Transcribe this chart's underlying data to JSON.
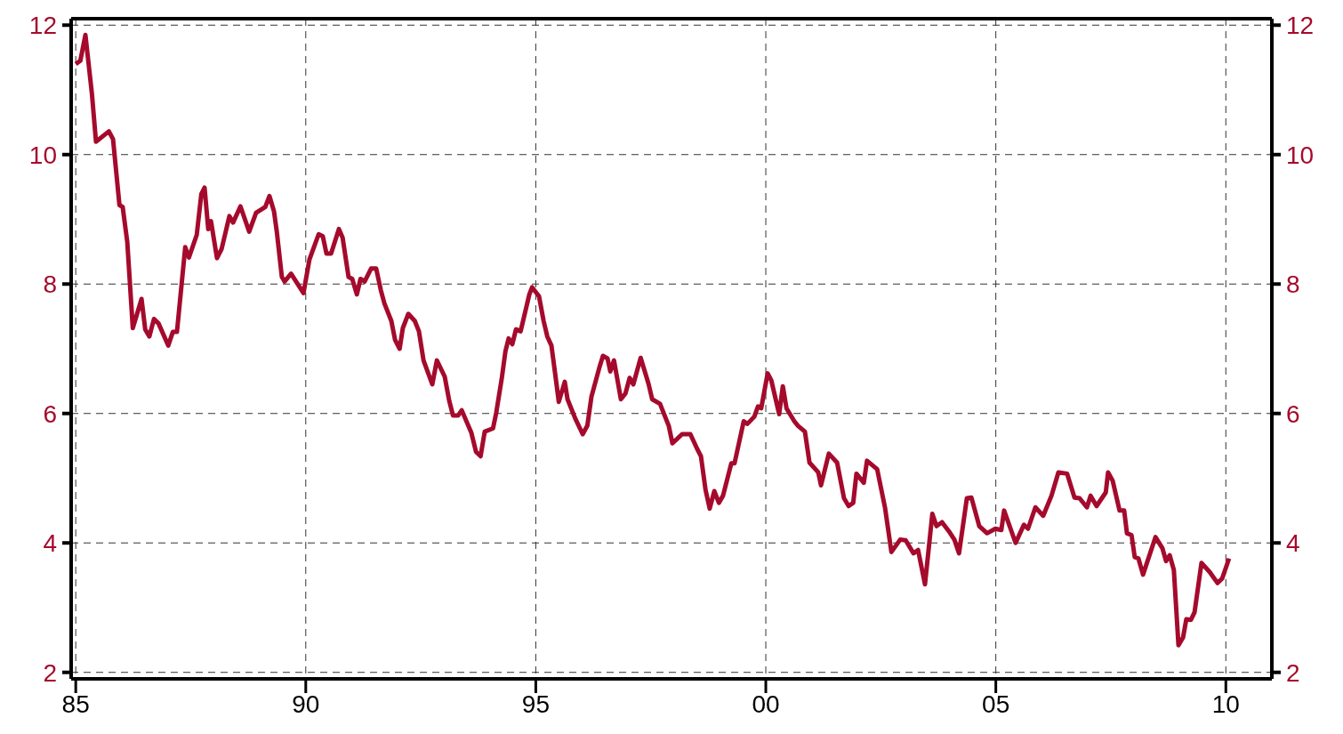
{
  "chart_data": {
    "type": "line",
    "xlim": [
      1984.9,
      2011.0
    ],
    "xticks": [
      {
        "value": 1985,
        "label": "85"
      },
      {
        "value": 1990,
        "label": "90"
      },
      {
        "value": 1995,
        "label": "95"
      },
      {
        "value": 2000,
        "label": "00"
      },
      {
        "value": 2005,
        "label": "05"
      },
      {
        "value": 2010,
        "label": "10"
      }
    ],
    "ylim": [
      1.9,
      12.1
    ],
    "yticks": [
      2,
      4,
      6,
      8,
      10,
      12
    ],
    "y2lim": [
      1.9,
      12.1
    ],
    "y2ticks": [
      2,
      4,
      6,
      8,
      10,
      12
    ],
    "grid": true,
    "legend": false,
    "line_style": "solid",
    "marker": "none",
    "series": [
      {
        "color": "#a50a2c",
        "x": [
          1985.0,
          1985.1,
          1985.21,
          1985.35,
          1985.44,
          1985.72,
          1985.81,
          1985.95,
          1986.02,
          1986.12,
          1986.24,
          1986.43,
          1986.51,
          1986.6,
          1986.7,
          1986.8,
          1987.01,
          1987.11,
          1987.2,
          1987.38,
          1987.46,
          1987.63,
          1987.73,
          1987.8,
          1987.88,
          1987.94,
          1988.07,
          1988.17,
          1988.34,
          1988.42,
          1988.58,
          1988.77,
          1988.92,
          1989.12,
          1989.21,
          1989.31,
          1989.37,
          1989.48,
          1989.54,
          1989.68,
          1989.95,
          1990.08,
          1990.28,
          1990.37,
          1990.45,
          1990.55,
          1990.72,
          1990.8,
          1990.93,
          1991.01,
          1991.11,
          1991.19,
          1991.28,
          1991.42,
          1991.53,
          1991.63,
          1991.71,
          1991.86,
          1991.94,
          1992.04,
          1992.11,
          1992.23,
          1992.37,
          1992.46,
          1992.56,
          1992.75,
          1992.85,
          1993.02,
          1993.12,
          1993.2,
          1993.31,
          1993.39,
          1993.6,
          1993.7,
          1993.8,
          1993.89,
          1994.07,
          1994.14,
          1994.26,
          1994.34,
          1994.41,
          1994.49,
          1994.57,
          1994.67,
          1994.86,
          1994.92,
          1995.07,
          1995.17,
          1995.25,
          1995.34,
          1995.42,
          1995.5,
          1995.63,
          1995.69,
          1995.86,
          1996.02,
          1996.12,
          1996.21,
          1996.39,
          1996.46,
          1996.56,
          1996.62,
          1996.7,
          1996.85,
          1996.95,
          1997.04,
          1997.12,
          1997.28,
          1997.45,
          1997.53,
          1997.7,
          1997.89,
          1997.97,
          1998.18,
          1998.36,
          1998.51,
          1998.59,
          1998.69,
          1998.78,
          1998.88,
          1998.98,
          1999.07,
          1999.25,
          1999.32,
          1999.52,
          1999.6,
          1999.75,
          1999.83,
          1999.9,
          2000.04,
          2000.12,
          2000.29,
          2000.37,
          2000.45,
          2000.62,
          2000.7,
          2000.85,
          2000.95,
          2001.14,
          2001.2,
          2001.37,
          2001.55,
          2001.7,
          2001.8,
          2001.9,
          2001.97,
          2002.13,
          2002.2,
          2002.42,
          2002.59,
          2002.73,
          2002.92,
          2003.04,
          2003.21,
          2003.31,
          2003.46,
          2003.62,
          2003.71,
          2003.83,
          2004.0,
          2004.1,
          2004.2,
          2004.37,
          2004.47,
          2004.64,
          2004.81,
          2004.99,
          2005.12,
          2005.18,
          2005.43,
          2005.61,
          2005.7,
          2005.86,
          2006.03,
          2006.21,
          2006.36,
          2006.55,
          2006.71,
          2006.82,
          2006.98,
          2007.06,
          2007.19,
          2007.39,
          2007.44,
          2007.54,
          2007.69,
          2007.79,
          2007.85,
          2007.95,
          2008.02,
          2008.1,
          2008.2,
          2008.47,
          2008.62,
          2008.7,
          2008.78,
          2008.87,
          2008.97,
          2009.07,
          2009.14,
          2009.24,
          2009.32,
          2009.47,
          2009.65,
          2009.82,
          2009.92,
          2010.07
        ],
        "values": [
          11.4,
          11.45,
          11.85,
          10.95,
          10.2,
          10.36,
          10.24,
          9.22,
          9.19,
          8.65,
          7.32,
          7.77,
          7.3,
          7.19,
          7.46,
          7.39,
          7.05,
          7.26,
          7.26,
          8.57,
          8.41,
          8.76,
          9.39,
          9.49,
          8.85,
          8.97,
          8.4,
          8.54,
          9.05,
          8.95,
          9.2,
          8.81,
          9.1,
          9.19,
          9.36,
          9.12,
          8.81,
          8.11,
          8.04,
          8.16,
          7.86,
          8.38,
          8.77,
          8.74,
          8.47,
          8.47,
          8.85,
          8.72,
          8.11,
          8.08,
          7.84,
          8.08,
          8.04,
          8.24,
          8.24,
          7.91,
          7.7,
          7.43,
          7.14,
          7.0,
          7.32,
          7.54,
          7.43,
          7.27,
          6.82,
          6.45,
          6.82,
          6.57,
          6.19,
          5.97,
          5.97,
          6.05,
          5.7,
          5.41,
          5.34,
          5.72,
          5.77,
          6.01,
          6.54,
          6.96,
          7.16,
          7.07,
          7.3,
          7.27,
          7.84,
          7.95,
          7.81,
          7.43,
          7.19,
          7.05,
          6.62,
          6.18,
          6.49,
          6.22,
          5.92,
          5.68,
          5.81,
          6.26,
          6.73,
          6.89,
          6.85,
          6.65,
          6.82,
          6.22,
          6.31,
          6.55,
          6.45,
          6.86,
          6.46,
          6.22,
          6.15,
          5.81,
          5.54,
          5.68,
          5.68,
          5.45,
          5.34,
          4.82,
          4.53,
          4.8,
          4.62,
          4.73,
          5.23,
          5.23,
          5.88,
          5.84,
          5.95,
          6.11,
          6.08,
          6.62,
          6.51,
          5.99,
          6.42,
          6.08,
          5.88,
          5.81,
          5.72,
          5.24,
          5.09,
          4.89,
          5.38,
          5.24,
          4.69,
          4.57,
          4.62,
          5.07,
          4.93,
          5.27,
          5.14,
          4.55,
          3.86,
          4.05,
          4.04,
          3.84,
          3.89,
          3.36,
          4.45,
          4.26,
          4.32,
          4.16,
          4.05,
          3.84,
          4.69,
          4.7,
          4.26,
          4.15,
          4.22,
          4.2,
          4.5,
          4.0,
          4.28,
          4.22,
          4.55,
          4.42,
          4.73,
          5.09,
          5.07,
          4.7,
          4.69,
          4.55,
          4.73,
          4.57,
          4.78,
          5.09,
          4.96,
          4.5,
          4.5,
          4.15,
          4.12,
          3.78,
          3.76,
          3.51,
          4.09,
          3.92,
          3.72,
          3.81,
          3.58,
          2.42,
          2.54,
          2.82,
          2.81,
          2.93,
          3.69,
          3.55,
          3.38,
          3.45,
          3.76
        ]
      }
    ]
  }
}
